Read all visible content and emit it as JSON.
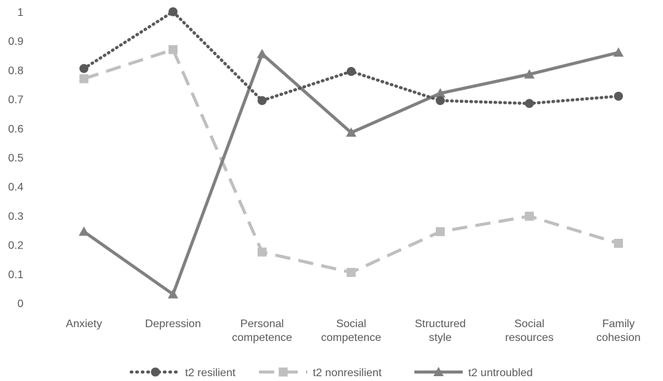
{
  "chart_data": {
    "type": "line",
    "categories": [
      [
        "Anxiety"
      ],
      [
        "Depression"
      ],
      [
        "Personal",
        "competence"
      ],
      [
        "Social",
        "competence"
      ],
      [
        "Structured",
        "style"
      ],
      [
        "Social",
        "resources"
      ],
      [
        "Family",
        "cohesion"
      ]
    ],
    "ylim": [
      0,
      1
    ],
    "yticks": [
      "0",
      "0.1",
      "0.2",
      "0.3",
      "0.4",
      "0.5",
      "0.6",
      "0.7",
      "0.8",
      "0.9",
      "1"
    ],
    "grid": false,
    "legend_position": "bottom",
    "series": [
      {
        "name": "t2 resilient",
        "values": [
          0.805,
          1.0,
          0.695,
          0.795,
          0.695,
          0.685,
          0.71
        ],
        "color": "#595959",
        "dash": "dotted",
        "marker": "circle"
      },
      {
        "name": "t2 nonresilient",
        "values": [
          0.77,
          0.87,
          0.175,
          0.105,
          0.245,
          0.298,
          0.205
        ],
        "color": "#bfbfbf",
        "dash": "dashed",
        "marker": "square"
      },
      {
        "name": "t2 untroubled",
        "values": [
          0.245,
          0.03,
          0.855,
          0.585,
          0.72,
          0.785,
          0.86
        ],
        "color": "#808080",
        "dash": "solid",
        "marker": "triangle"
      }
    ]
  }
}
